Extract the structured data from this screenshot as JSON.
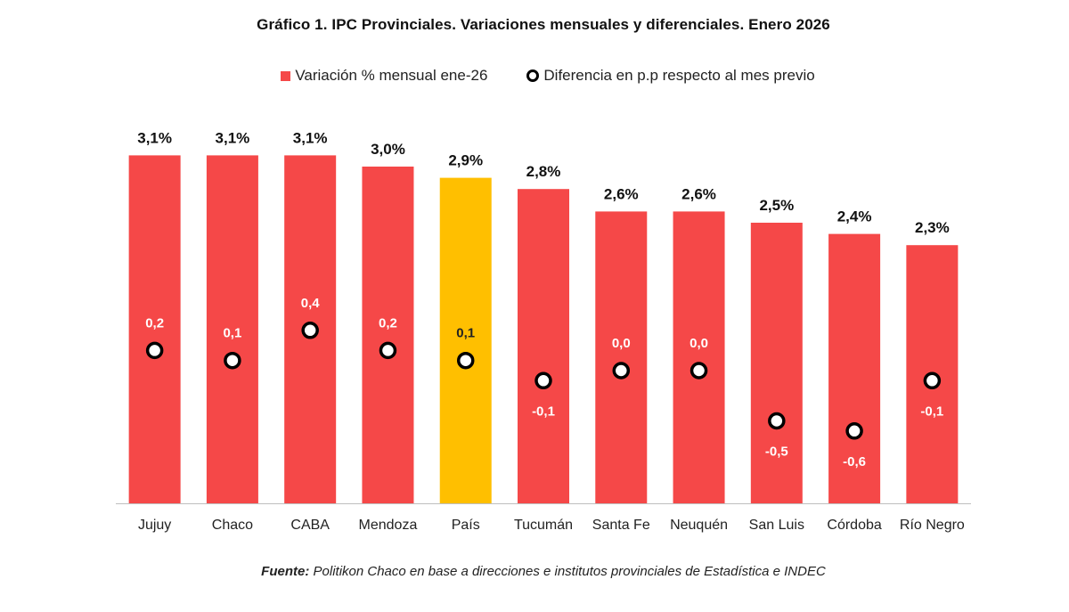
{
  "chart_data": {
    "type": "bar",
    "title": "Gráfico 1. IPC Provinciales. Variaciones mensuales y diferenciales. Enero 2026",
    "categories": [
      "Jujuy",
      "Chaco",
      "CABA",
      "Mendoza",
      "País",
      "Tucumán",
      "Santa Fe",
      "Neuquén",
      "San Luis",
      "Córdoba",
      "Río Negro"
    ],
    "series": [
      {
        "name": "Variación % mensual ene-26",
        "type": "bar",
        "color": "#f54848",
        "highlight_color": "#ffbf00",
        "highlight_category": "País",
        "values": [
          3.1,
          3.1,
          3.1,
          3.0,
          2.9,
          2.8,
          2.6,
          2.6,
          2.5,
          2.4,
          2.3
        ],
        "labels": [
          "3,1%",
          "3,1%",
          "3,1%",
          "3,0%",
          "2,9%",
          "2,8%",
          "2,6%",
          "2,6%",
          "2,5%",
          "2,4%",
          "2,3%"
        ]
      },
      {
        "name": "Diferencia en p.p respecto al mes previo",
        "type": "scatter",
        "marker": "circle",
        "values": [
          0.2,
          0.1,
          0.4,
          0.2,
          0.1,
          -0.1,
          0.0,
          0.0,
          -0.5,
          -0.6,
          -0.1
        ],
        "labels": [
          "0,2",
          "0,1",
          "0,4",
          "0,2",
          "0,1",
          "-0,1",
          "0,0",
          "0,0",
          "-0,5",
          "-0,6",
          "-0,1"
        ]
      }
    ],
    "grid": false,
    "legend": "top-center"
  },
  "footer": {
    "source_label": "Fuente:",
    "source_text": "Politikon Chaco en base a direcciones e institutos provinciales de Estadística e INDEC"
  }
}
